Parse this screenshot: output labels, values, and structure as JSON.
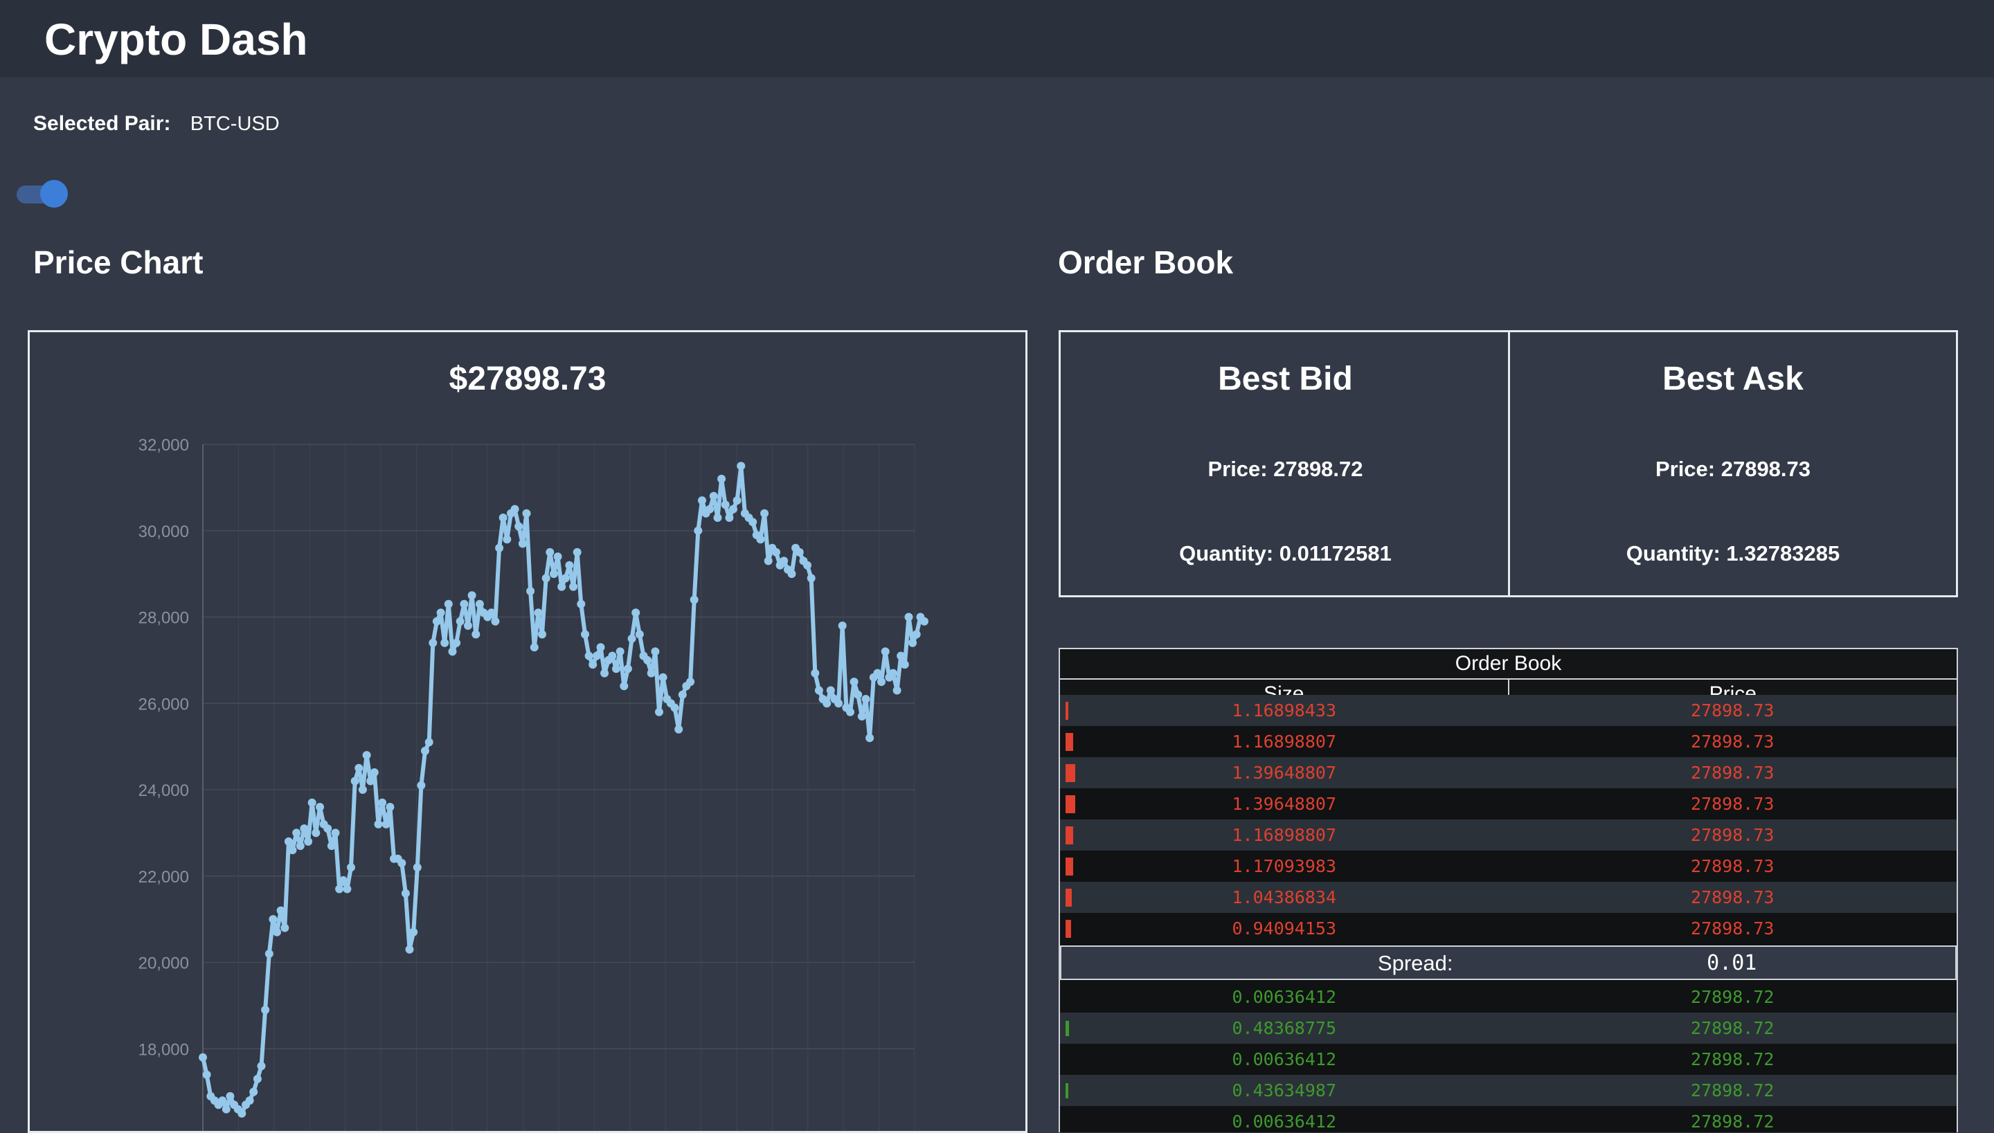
{
  "app": {
    "title": "Crypto Dash"
  },
  "pair": {
    "label": "Selected Pair:",
    "value": "BTC-USD"
  },
  "toggle": {
    "state": "on",
    "color": "#3d7fd8"
  },
  "sections": {
    "price_chart": "Price Chart",
    "order_book": "Order Book"
  },
  "chart": {
    "current_price": "$27898.73"
  },
  "chart_data": {
    "type": "line",
    "title": "$27898.73",
    "xlabel": "",
    "ylabel": "",
    "ylim": [
      16000,
      32000
    ],
    "yticks": [
      "32,000",
      "30,000",
      "28,000",
      "26,000",
      "24,000",
      "22,000",
      "20,000",
      "18,000"
    ],
    "grid": true,
    "color": "#95c8ea",
    "values": [
      17800,
      17400,
      16900,
      16800,
      16700,
      16800,
      16600,
      16900,
      16700,
      16600,
      16500,
      16700,
      16800,
      17000,
      17300,
      17600,
      18900,
      20200,
      21000,
      20700,
      21200,
      20800,
      22800,
      22600,
      23000,
      22700,
      23100,
      22800,
      23700,
      23000,
      23600,
      23200,
      23100,
      22700,
      23000,
      21700,
      21900,
      21700,
      22200,
      24200,
      24500,
      24000,
      24800,
      24200,
      24400,
      23200,
      23700,
      23200,
      23600,
      22400,
      22400,
      22300,
      21600,
      20300,
      20700,
      22200,
      24100,
      24900,
      25100,
      27400,
      27900,
      28100,
      27400,
      28300,
      27200,
      27400,
      27900,
      28300,
      27800,
      28500,
      27600,
      28300,
      28100,
      28000,
      28100,
      27900,
      29600,
      30300,
      29800,
      30400,
      30500,
      30100,
      29700,
      30400,
      28600,
      27300,
      28100,
      27600,
      28900,
      29500,
      29000,
      29400,
      28700,
      28900,
      29200,
      28700,
      29500,
      28300,
      27600,
      27100,
      26900,
      27100,
      27300,
      26700,
      27000,
      27100,
      26800,
      27200,
      26400,
      26800,
      27500,
      28100,
      27600,
      27100,
      27000,
      26700,
      27200,
      25800,
      26600,
      26100,
      26000,
      25900,
      25400,
      26200,
      26400,
      26500,
      28400,
      30000,
      30700,
      30400,
      30500,
      30800,
      30300,
      31200,
      30600,
      30300,
      30500,
      30700,
      31500,
      30400,
      30300,
      30200,
      29900,
      29800,
      30400,
      29300,
      29600,
      29500,
      29200,
      29300,
      29100,
      29000,
      29600,
      29500,
      29300,
      29200,
      28900,
      26700,
      26300,
      26100,
      26000,
      26300,
      26100,
      26000,
      27800,
      25900,
      25800,
      26500,
      26200,
      25700,
      26100,
      25200,
      26600,
      26700,
      26500,
      27200,
      26600,
      26700,
      26300,
      27100,
      26900,
      28000,
      27400,
      27600,
      28000,
      27900
    ]
  },
  "best_bid": {
    "title": "Best Bid",
    "price": "Price: 27898.72",
    "quantity": "Quantity: 0.01172581"
  },
  "best_ask": {
    "title": "Best Ask",
    "price": "Price: 27898.73",
    "quantity": "Quantity: 1.32783285"
  },
  "order_book": {
    "title": "Order Book",
    "headers": {
      "size": "Size",
      "price": "Price"
    },
    "asks": [
      {
        "size": "1.16898433",
        "price": "27898.73",
        "depth": 0.2
      },
      {
        "size": "1.16898807",
        "price": "27898.73",
        "depth": 0.55
      },
      {
        "size": "1.39648807",
        "price": "27898.73",
        "depth": 0.7
      },
      {
        "size": "1.39648807",
        "price": "27898.73",
        "depth": 0.7
      },
      {
        "size": "1.16898807",
        "price": "27898.73",
        "depth": 0.55
      },
      {
        "size": "1.17093983",
        "price": "27898.73",
        "depth": 0.55
      },
      {
        "size": "1.04386834",
        "price": "27898.73",
        "depth": 0.45
      },
      {
        "size": "0.94094153",
        "price": "27898.73",
        "depth": 0.4
      }
    ],
    "spread": {
      "label": "Spread:",
      "value": "0.01"
    },
    "bids": [
      {
        "size": "0.00636412",
        "price": "27898.72",
        "depth": 0
      },
      {
        "size": "0.48368775",
        "price": "27898.72",
        "depth": 0.25
      },
      {
        "size": "0.00636412",
        "price": "27898.72",
        "depth": 0
      },
      {
        "size": "0.43634987",
        "price": "27898.72",
        "depth": 0.22
      },
      {
        "size": "0.00636412",
        "price": "27898.72",
        "depth": 0
      }
    ]
  }
}
